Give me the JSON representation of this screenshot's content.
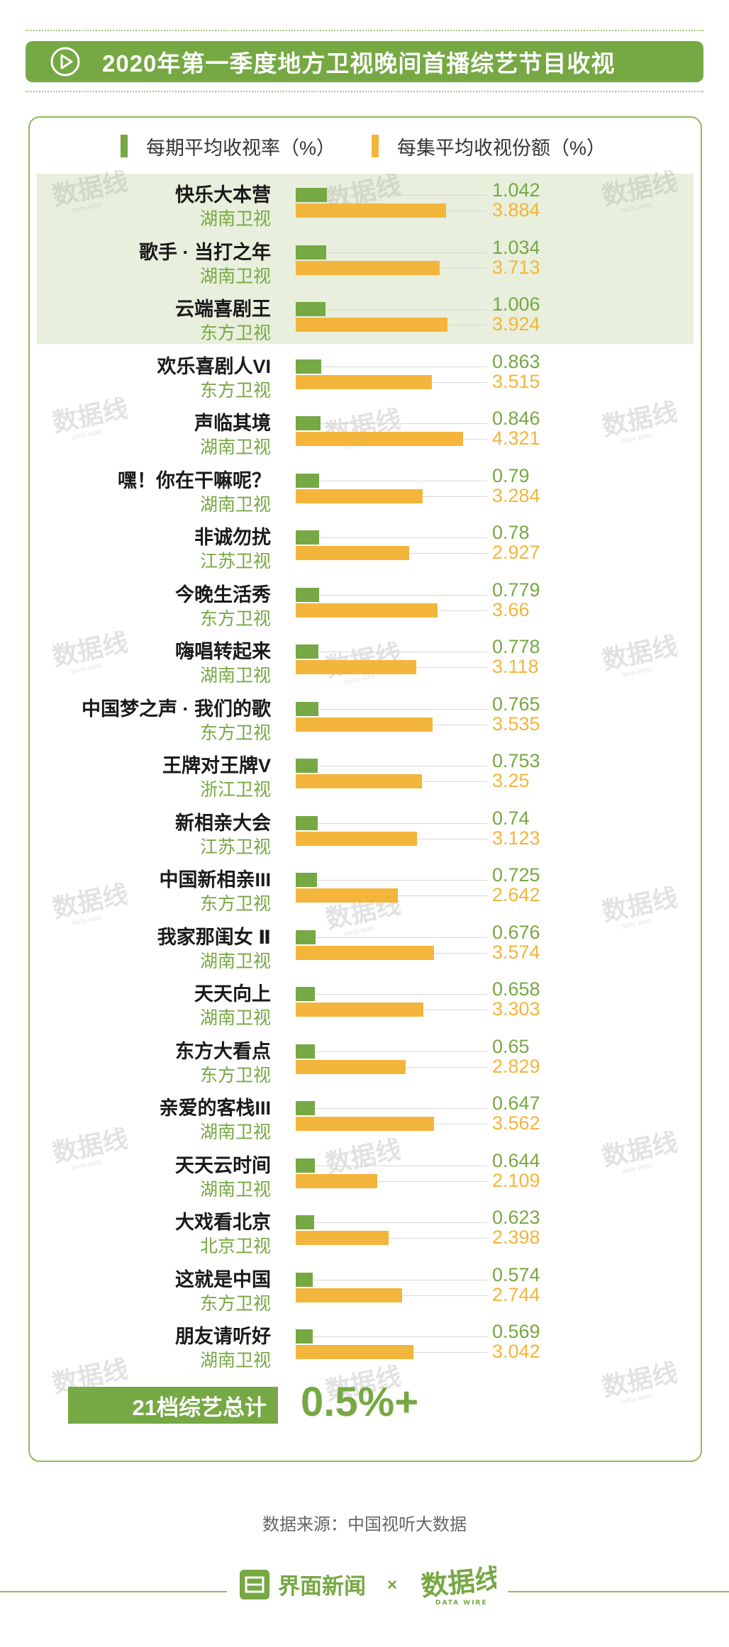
{
  "header": {
    "title": "2020年第一季度地方卫视晚间首播综艺节目收视"
  },
  "legend": {
    "green_label": "每期平均收视率（%）",
    "yellow_label": "每集平均收视份额（%）"
  },
  "colors": {
    "accent_green": "#76a843",
    "accent_yellow": "#f3b53b",
    "highlight_bg": "#e8efdc"
  },
  "chart_data": {
    "type": "bar",
    "orientation": "horizontal",
    "series": [
      {
        "name": "每期平均收视率（%）",
        "values": [
          1.042,
          1.034,
          1.006,
          0.863,
          0.846,
          0.79,
          0.78,
          0.779,
          0.778,
          0.765,
          0.753,
          0.74,
          0.725,
          0.676,
          0.658,
          0.65,
          0.647,
          0.644,
          0.623,
          0.574,
          0.569
        ]
      },
      {
        "name": "每集平均收视份额（%）",
        "values": [
          3.884,
          3.713,
          3.924,
          3.515,
          4.321,
          3.284,
          2.927,
          3.66,
          3.118,
          3.535,
          3.25,
          3.123,
          2.642,
          3.574,
          3.303,
          2.829,
          3.562,
          2.109,
          2.398,
          2.744,
          3.042
        ]
      }
    ],
    "rows": [
      {
        "name": "快乐大本营",
        "channel": "湖南卫视",
        "rating": "1.042",
        "share": "3.884"
      },
      {
        "name": "歌手 · 当打之年",
        "channel": "湖南卫视",
        "rating": "1.034",
        "share": "3.713"
      },
      {
        "name": "云端喜剧王",
        "channel": "东方卫视",
        "rating": "1.006",
        "share": "3.924"
      },
      {
        "name": "欢乐喜剧人VI",
        "channel": "东方卫视",
        "rating": "0.863",
        "share": "3.515"
      },
      {
        "name": "声临其境",
        "channel": "湖南卫视",
        "rating": "0.846",
        "share": "4.321"
      },
      {
        "name": "嘿！你在干嘛呢？",
        "channel": "湖南卫视",
        "rating": "0.79",
        "share": "3.284"
      },
      {
        "name": "非诚勿扰",
        "channel": "江苏卫视",
        "rating": "0.78",
        "share": "2.927"
      },
      {
        "name": "今晚生活秀",
        "channel": "东方卫视",
        "rating": "0.779",
        "share": "3.66"
      },
      {
        "name": "嗨唱转起来",
        "channel": "湖南卫视",
        "rating": "0.778",
        "share": "3.118"
      },
      {
        "name": "中国梦之声 · 我们的歌",
        "channel": "东方卫视",
        "rating": "0.765",
        "share": "3.535"
      },
      {
        "name": "王牌对王牌V",
        "channel": "浙江卫视",
        "rating": "0.753",
        "share": "3.25"
      },
      {
        "name": "新相亲大会",
        "channel": "江苏卫视",
        "rating": "0.74",
        "share": "3.123"
      },
      {
        "name": "中国新相亲III",
        "channel": "东方卫视",
        "rating": "0.725",
        "share": "2.642"
      },
      {
        "name": "我家那闺女 Ⅱ",
        "channel": "湖南卫视",
        "rating": "0.676",
        "share": "3.574"
      },
      {
        "name": "天天向上",
        "channel": "湖南卫视",
        "rating": "0.658",
        "share": "3.303"
      },
      {
        "name": "东方大看点",
        "channel": "东方卫视",
        "rating": "0.65",
        "share": "2.829"
      },
      {
        "name": "亲爱的客栈III",
        "channel": "湖南卫视",
        "rating": "0.647",
        "share": "3.562"
      },
      {
        "name": "天天云时间",
        "channel": "湖南卫视",
        "rating": "0.644",
        "share": "2.109"
      },
      {
        "name": "大戏看北京",
        "channel": "北京卫视",
        "rating": "0.623",
        "share": "2.398"
      },
      {
        "name": "这就是中国",
        "channel": "东方卫视",
        "rating": "0.574",
        "share": "2.744"
      },
      {
        "name": "朋友请听好",
        "channel": "湖南卫视",
        "rating": "0.569",
        "share": "3.042"
      }
    ],
    "highlighted_rows": 3
  },
  "summary": {
    "label": "21档综艺总计",
    "value": "0.5%+"
  },
  "source": "数据来源：中国视听大数据",
  "footer": {
    "brand": "界面新闻",
    "separator": "×",
    "partner_logo": "数据线",
    "partner_sub": "DATA WIRE"
  },
  "icons": {
    "title": "play-circle-icon",
    "brand": "jiemian-logo-icon",
    "watermark": "data-wire-watermark"
  }
}
